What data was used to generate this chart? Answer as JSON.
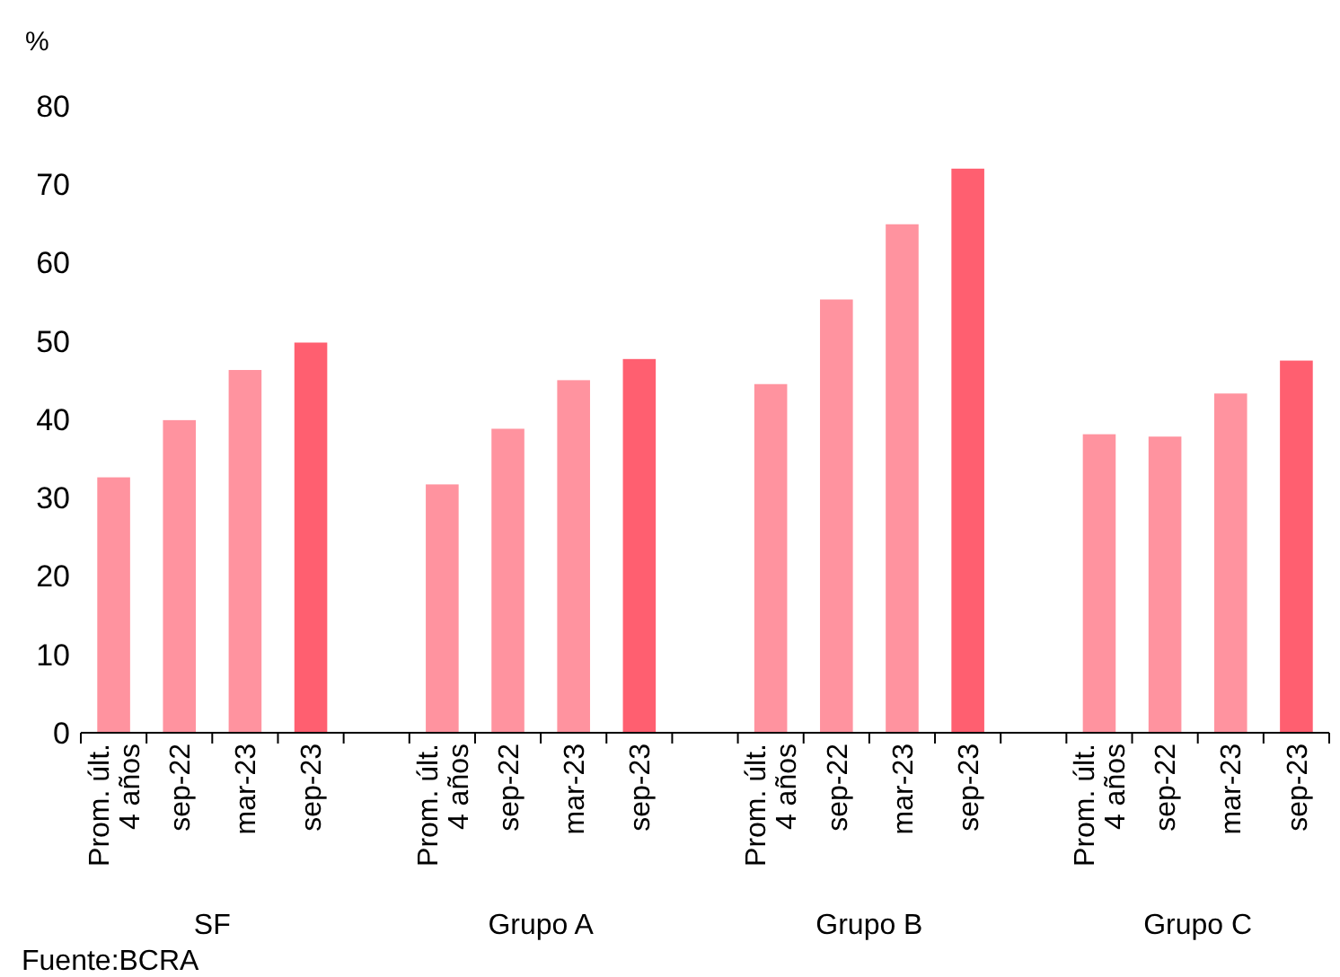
{
  "chart_data": {
    "type": "bar",
    "ylabel": "%",
    "categories": [
      "Prom. últ. 4 años",
      "sep-22",
      "mar-23",
      "sep-23",
      null,
      "Prom. últ. 4 años",
      "sep-22",
      "mar-23",
      "sep-23",
      null,
      "Prom. últ. 4 años",
      "sep-22",
      "mar-23",
      "sep-23",
      null,
      "Prom. últ. 4 años",
      "sep-22",
      "mar-23",
      "sep-23"
    ],
    "values": [
      32.6,
      39.9,
      46.3,
      49.8,
      null,
      31.7,
      38.8,
      45,
      47.7,
      null,
      44.5,
      55.3,
      64.9,
      72,
      null,
      38.1,
      37.8,
      43.3,
      47.5
    ],
    "colors": [
      "#ff939f",
      "#ff939f",
      "#ff939f",
      "#ff5f70",
      null,
      "#ff939f",
      "#ff939f",
      "#ff939f",
      "#ff5f70",
      null,
      "#ff939f",
      "#ff939f",
      "#ff939f",
      "#ff5f70",
      null,
      "#ff939f",
      "#ff939f",
      "#ff939f",
      "#ff5f70"
    ],
    "ylim": [
      0,
      80
    ],
    "yticks": [
      0,
      10,
      20,
      30,
      40,
      50,
      60,
      70,
      80
    ],
    "grid": false,
    "annotations": [
      "SF",
      "Grupo A",
      "Grupo B",
      "Grupo C",
      "Fuente:BCRA"
    ]
  }
}
